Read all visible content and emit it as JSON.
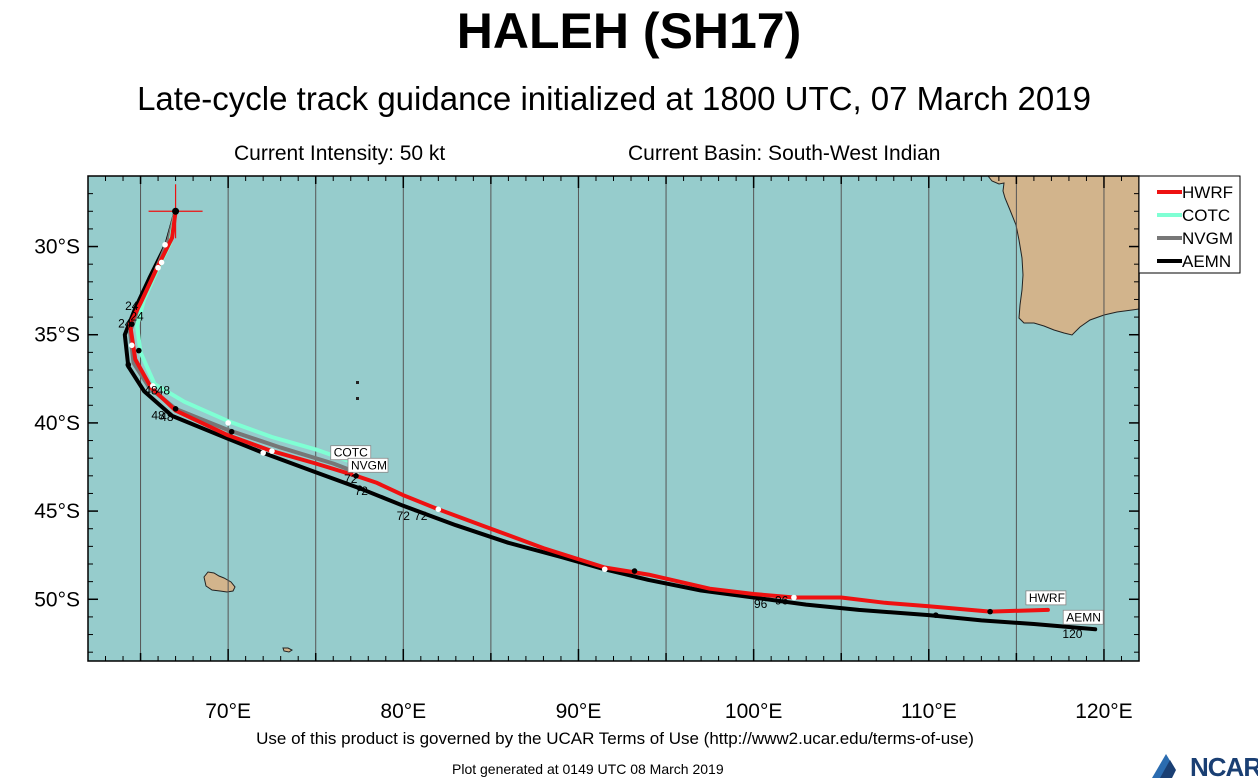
{
  "header": {
    "title": "HALEH (SH17)",
    "subtitle": "Late-cycle track guidance initialized at 1800 UTC, 07 March 2019",
    "intensity": "Current Intensity: 50 kt",
    "basin": "Current Basin: South-West Indian"
  },
  "footer": {
    "terms": "Use of this product is governed by the UCAR Terms of Use (http://www2.ucar.edu/terms-of-use)",
    "generated": "Plot generated at 0149 UTC   08 March 2019",
    "logo_text": "NCAR"
  },
  "colors": {
    "ocean": "#96cccc",
    "land": "#d2b48c",
    "grid": "#555555",
    "HWRF": "#ee1111",
    "COTC": "#7fffd4",
    "NVGM": "#777777",
    "AEMN": "#000000"
  },
  "axes": {
    "lon_range": [
      62,
      122
    ],
    "lat_range": [
      -53.5,
      -26
    ],
    "lon_ticks": [
      "70°E",
      "80°E",
      "90°E",
      "100°E",
      "110°E",
      "120°E"
    ],
    "lat_ticks": [
      "30°S",
      "35°S",
      "40°S",
      "45°S",
      "50°S"
    ]
  },
  "legend": {
    "position": "top-right",
    "entries": [
      "HWRF",
      "COTC",
      "NVGM",
      "AEMN"
    ]
  },
  "initial_position": {
    "lon": 67.0,
    "lat": -28.0
  },
  "tracks": [
    {
      "model": "HWRF",
      "end_label": "HWRF",
      "points": [
        [
          67.0,
          -28.0
        ],
        [
          66.8,
          -29.5
        ],
        [
          65.9,
          -31.3
        ],
        [
          65.0,
          -33.2
        ],
        [
          64.4,
          -34.4
        ],
        [
          64.7,
          -36.4
        ],
        [
          65.6,
          -38.0
        ],
        [
          67.0,
          -39.3
        ],
        [
          70.0,
          -40.7
        ],
        [
          72.5,
          -41.6
        ],
        [
          75.0,
          -42.3
        ],
        [
          77.3,
          -43.0
        ],
        [
          78.5,
          -43.4
        ],
        [
          80.0,
          -44.1
        ],
        [
          82.0,
          -44.9
        ],
        [
          85.0,
          -46.0
        ],
        [
          88.0,
          -47.1
        ],
        [
          91.5,
          -48.2
        ],
        [
          94.0,
          -48.6
        ],
        [
          97.5,
          -49.4
        ],
        [
          100.0,
          -49.7
        ],
        [
          102.3,
          -49.9
        ],
        [
          105.0,
          -49.9
        ],
        [
          107.5,
          -50.2
        ],
        [
          110.0,
          -50.4
        ],
        [
          113.5,
          -50.7
        ],
        [
          116.8,
          -50.6
        ]
      ],
      "markers": [
        [
          66.0,
          -31.2
        ],
        [
          64.5,
          -34.4
        ],
        [
          65.7,
          -37.9
        ],
        [
          70.2,
          -40.5
        ],
        [
          72.5,
          -41.6
        ],
        [
          77.3,
          -43.0
        ],
        [
          82.0,
          -44.9
        ],
        [
          93.2,
          -48.4
        ],
        [
          102.3,
          -49.9
        ],
        [
          113.5,
          -50.7
        ]
      ]
    },
    {
      "model": "COTC",
      "end_label": "COTC",
      "points": [
        [
          67.0,
          -28.0
        ],
        [
          66.7,
          -29.8
        ],
        [
          66.1,
          -31.0
        ],
        [
          65.2,
          -33.0
        ],
        [
          64.8,
          -34.5
        ],
        [
          65.0,
          -36.0
        ],
        [
          65.8,
          -37.8
        ],
        [
          67.5,
          -38.8
        ],
        [
          70.0,
          -39.9
        ],
        [
          72.5,
          -40.8
        ],
        [
          75.0,
          -41.5
        ],
        [
          77.0,
          -42.2
        ]
      ],
      "markers": [
        [
          66.2,
          -30.9
        ],
        [
          64.9,
          -35.9
        ],
        [
          70.0,
          -40.0
        ],
        [
          77.0,
          -42.3
        ]
      ]
    },
    {
      "model": "NVGM",
      "end_label": "NVGM",
      "points": [
        [
          67.0,
          -28.0
        ],
        [
          66.6,
          -29.6
        ],
        [
          65.8,
          -31.5
        ],
        [
          65.0,
          -33.3
        ],
        [
          64.4,
          -34.8
        ],
        [
          64.6,
          -36.6
        ],
        [
          65.5,
          -38.0
        ],
        [
          67.0,
          -39.2
        ],
        [
          70.0,
          -40.4
        ],
        [
          73.0,
          -41.4
        ],
        [
          76.0,
          -42.3
        ],
        [
          77.3,
          -42.8
        ]
      ],
      "markers": [
        [
          64.5,
          -35.6
        ],
        [
          67.0,
          -39.2
        ],
        [
          77.3,
          -42.8
        ]
      ]
    },
    {
      "model": "AEMN",
      "end_label": "AEMN",
      "points": [
        [
          67.0,
          -28.0
        ],
        [
          66.5,
          -29.8
        ],
        [
          65.5,
          -31.8
        ],
        [
          64.7,
          -33.5
        ],
        [
          64.1,
          -35.0
        ],
        [
          64.3,
          -36.8
        ],
        [
          65.2,
          -38.2
        ],
        [
          66.8,
          -39.6
        ],
        [
          70.0,
          -40.9
        ],
        [
          72.0,
          -41.7
        ],
        [
          75.0,
          -42.8
        ],
        [
          77.5,
          -43.7
        ],
        [
          80.0,
          -44.7
        ],
        [
          83.0,
          -45.8
        ],
        [
          86.0,
          -46.8
        ],
        [
          89.0,
          -47.6
        ],
        [
          91.5,
          -48.3
        ],
        [
          94.0,
          -48.9
        ],
        [
          97.0,
          -49.5
        ],
        [
          100.0,
          -49.9
        ],
        [
          103.0,
          -50.3
        ],
        [
          106.0,
          -50.6
        ],
        [
          110.0,
          -50.9
        ],
        [
          113.0,
          -51.2
        ],
        [
          116.0,
          -51.4
        ],
        [
          119.5,
          -51.7
        ]
      ],
      "markers": [
        [
          66.4,
          -29.9
        ],
        [
          64.3,
          -36.7
        ],
        [
          72.0,
          -41.7
        ],
        [
          77.5,
          -43.7
        ],
        [
          91.5,
          -48.3
        ],
        [
          110.4,
          -50.9
        ]
      ]
    }
  ],
  "hour_labels": [
    {
      "text": "24",
      "lon": 64.5,
      "lat": -33.6
    },
    {
      "text": "24",
      "lon": 64.8,
      "lat": -34.2
    },
    {
      "text": "24",
      "lon": 64.1,
      "lat": -34.6
    },
    {
      "text": "48",
      "lon": 65.6,
      "lat": -38.4
    },
    {
      "text": "48",
      "lon": 66.3,
      "lat": -38.4
    },
    {
      "text": "48",
      "lon": 66.0,
      "lat": -39.8
    },
    {
      "text": "48",
      "lon": 66.5,
      "lat": -39.9
    },
    {
      "text": "72",
      "lon": 77.0,
      "lat": -43.4
    },
    {
      "text": "72",
      "lon": 77.6,
      "lat": -44.1
    },
    {
      "text": "72",
      "lon": 80.0,
      "lat": -45.5
    },
    {
      "text": "72",
      "lon": 81.0,
      "lat": -45.5
    },
    {
      "text": "96",
      "lon": 100.4,
      "lat": -50.5
    },
    {
      "text": "96",
      "lon": 101.6,
      "lat": -50.3
    },
    {
      "text": "120",
      "lon": 118.2,
      "lat": -52.2
    }
  ]
}
